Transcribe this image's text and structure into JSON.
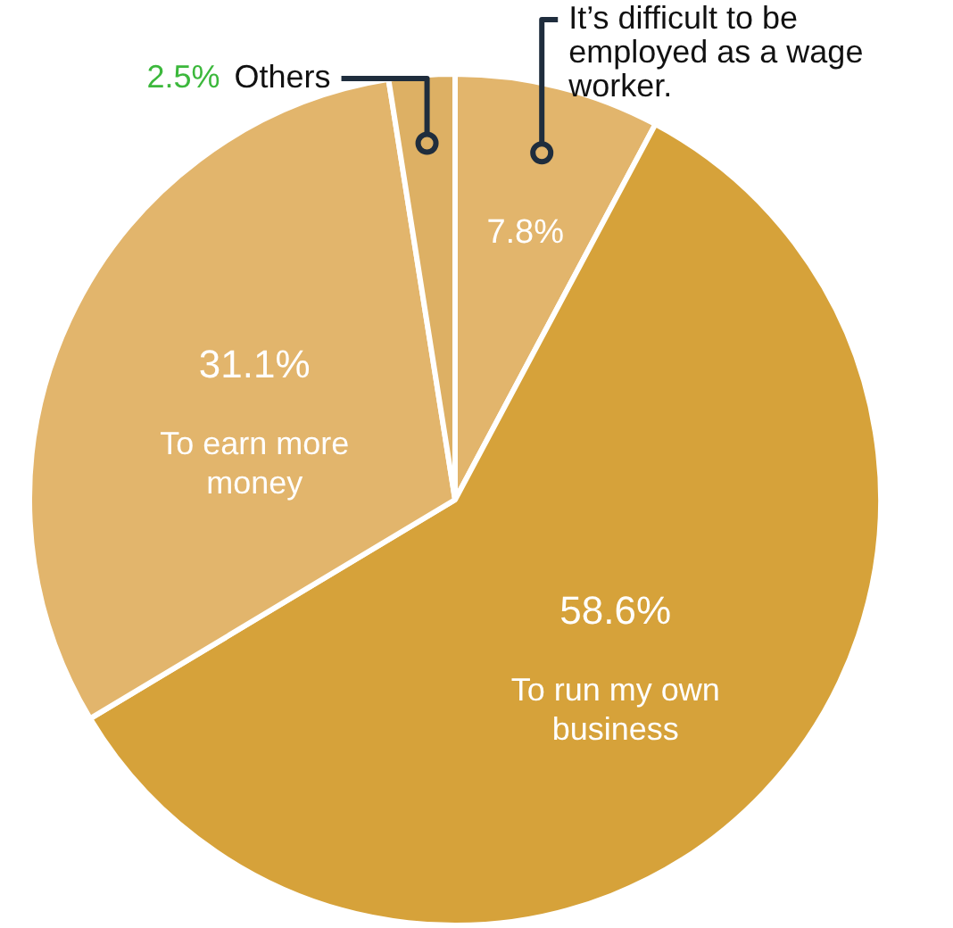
{
  "chart_data": {
    "type": "pie",
    "categories": [
      "It’s difficult to be employed as a wage worker.",
      "To run my own business",
      "To earn more money",
      "Others"
    ],
    "values": [
      7.8,
      58.6,
      31.1,
      2.5
    ],
    "colors": [
      "#e2b56c",
      "#d6a23a",
      "#e2b56c",
      "#ddb064"
    ],
    "data_labels": true,
    "value_labels": [
      "7.8%",
      "58.6%",
      "31.1%",
      "2.5%"
    ]
  }
}
